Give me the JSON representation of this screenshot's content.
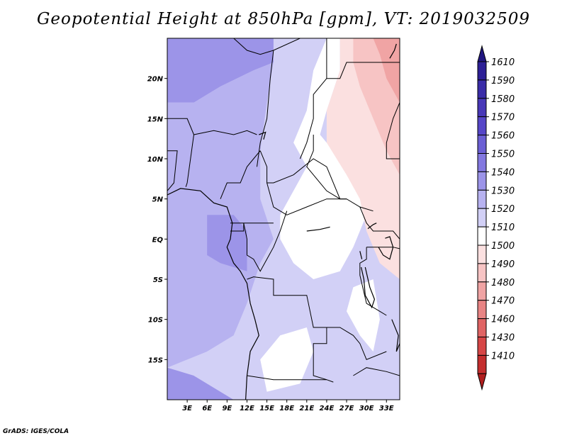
{
  "title": "Geopotential Height at 850hPa [gpm], VT: 2019032509",
  "credit": "GrADS: IGES/COLA",
  "map": {
    "lon_range": [
      0,
      35
    ],
    "lat_range": [
      -20,
      25
    ],
    "x_ticks": [
      {
        "lon": 3,
        "label": "3E"
      },
      {
        "lon": 6,
        "label": "6E"
      },
      {
        "lon": 9,
        "label": "9E"
      },
      {
        "lon": 12,
        "label": "12E"
      },
      {
        "lon": 15,
        "label": "15E"
      },
      {
        "lon": 18,
        "label": "18E"
      },
      {
        "lon": 21,
        "label": "21E"
      },
      {
        "lon": 24,
        "label": "24E"
      },
      {
        "lon": 27,
        "label": "27E"
      },
      {
        "lon": 30,
        "label": "30E"
      },
      {
        "lon": 33,
        "label": "33E"
      }
    ],
    "y_ticks": [
      {
        "lat": 20,
        "label": "20N"
      },
      {
        "lat": 15,
        "label": "15N"
      },
      {
        "lat": 10,
        "label": "10N"
      },
      {
        "lat": 5,
        "label": "5N"
      },
      {
        "lat": 0,
        "label": "EQ"
      },
      {
        "lat": -5,
        "label": "5S"
      },
      {
        "lat": -10,
        "label": "10S"
      },
      {
        "lat": -15,
        "label": "15S"
      }
    ]
  },
  "legend": {
    "levels": [
      {
        "label": "1610",
        "color": "#2d1f96"
      },
      {
        "label": "1590",
        "color": "#3a2ca8"
      },
      {
        "label": "1580",
        "color": "#4838b8"
      },
      {
        "label": "1570",
        "color": "#5646c8"
      },
      {
        "label": "1560",
        "color": "#6b5fd4"
      },
      {
        "label": "1550",
        "color": "#8378e0"
      },
      {
        "label": "1540",
        "color": "#9c94e8"
      },
      {
        "label": "1530",
        "color": "#b7b2f0"
      },
      {
        "label": "1520",
        "color": "#d2d0f6"
      },
      {
        "label": "1510",
        "color": "#ffffff"
      },
      {
        "label": "1500",
        "color": "#fbe0e0"
      },
      {
        "label": "1490",
        "color": "#f7c4c4"
      },
      {
        "label": "1480",
        "color": "#f0a4a4"
      },
      {
        "label": "1470",
        "color": "#e88484"
      },
      {
        "label": "1460",
        "color": "#e06464"
      },
      {
        "label": "1430",
        "color": "#d64646"
      },
      {
        "label": "1410",
        "color": "#c42e2e"
      }
    ],
    "top_arrow_color": "#211680",
    "bottom_arrow_color": "#b01e1e"
  },
  "fill_regions": [
    {
      "color": "#9c94e8",
      "points": [
        [
          0,
          25
        ],
        [
          18,
          25
        ],
        [
          16,
          22
        ],
        [
          13,
          21
        ],
        [
          8,
          19
        ],
        [
          4,
          17
        ],
        [
          0,
          17
        ]
      ]
    },
    {
      "color": "#b7b2f0",
      "points": [
        [
          0,
          17
        ],
        [
          4,
          17
        ],
        [
          8,
          19
        ],
        [
          13,
          21
        ],
        [
          16,
          22
        ],
        [
          15,
          17
        ],
        [
          14,
          11
        ],
        [
          14,
          5
        ],
        [
          16,
          0
        ],
        [
          14,
          -3
        ],
        [
          12,
          -8
        ],
        [
          10,
          -12
        ],
        [
          6,
          -14
        ],
        [
          0,
          -16
        ]
      ]
    },
    {
      "color": "#9c94e8",
      "points": [
        [
          6,
          3
        ],
        [
          10,
          3
        ],
        [
          12,
          1
        ],
        [
          12,
          -4
        ],
        [
          8,
          -3
        ],
        [
          6,
          -2
        ]
      ]
    },
    {
      "color": "#9c94e8",
      "points": [
        [
          0,
          -16
        ],
        [
          4,
          -17
        ],
        [
          10,
          -20
        ],
        [
          0,
          -20
        ]
      ]
    },
    {
      "color": "#d2d0f6",
      "points": [
        [
          16,
          25
        ],
        [
          24,
          25
        ],
        [
          22,
          21
        ],
        [
          22,
          16
        ],
        [
          21,
          12
        ],
        [
          17,
          8
        ],
        [
          15,
          4
        ],
        [
          16,
          0
        ],
        [
          14,
          -3
        ],
        [
          12,
          -8
        ],
        [
          10,
          -12
        ],
        [
          6,
          -14
        ],
        [
          4,
          -17
        ],
        [
          10,
          -20
        ],
        [
          35,
          -20
        ],
        [
          35,
          -8
        ],
        [
          29,
          -3
        ],
        [
          27,
          1
        ],
        [
          26,
          4
        ],
        [
          24,
          6
        ],
        [
          19,
          10
        ],
        [
          16,
          14
        ],
        [
          15,
          17
        ],
        [
          16,
          22
        ]
      ]
    },
    {
      "color": "#ffffff",
      "points": [
        [
          24,
          25
        ],
        [
          26,
          25
        ],
        [
          26,
          21
        ],
        [
          24,
          16
        ],
        [
          23,
          13
        ],
        [
          26,
          10
        ],
        [
          29,
          7
        ],
        [
          30,
          3
        ],
        [
          28,
          -1
        ],
        [
          26,
          -4
        ],
        [
          22,
          -5
        ],
        [
          19,
          -3
        ],
        [
          17,
          0
        ],
        [
          17,
          3
        ],
        [
          19,
          6
        ],
        [
          21,
          9
        ],
        [
          19,
          12
        ],
        [
          21,
          16
        ],
        [
          22,
          21
        ]
      ]
    },
    {
      "color": "#ffffff",
      "points": [
        [
          17,
          -12
        ],
        [
          21,
          -11
        ],
        [
          22,
          -14
        ],
        [
          20,
          -18
        ],
        [
          15,
          -19
        ],
        [
          14,
          -15
        ]
      ]
    },
    {
      "color": "#ffffff",
      "points": [
        [
          28,
          -6
        ],
        [
          31,
          -5
        ],
        [
          32,
          -10
        ],
        [
          31,
          -14
        ],
        [
          29,
          -12
        ],
        [
          27,
          -9
        ]
      ]
    },
    {
      "color": "#fbe0e0",
      "points": [
        [
          26,
          25
        ],
        [
          35,
          25
        ],
        [
          35,
          -5
        ],
        [
          32,
          -3
        ],
        [
          30,
          1
        ],
        [
          29,
          5
        ],
        [
          27,
          8
        ],
        [
          24,
          12
        ],
        [
          24,
          16
        ],
        [
          26,
          21
        ]
      ]
    },
    {
      "color": "#f7c4c4",
      "points": [
        [
          28,
          25
        ],
        [
          35,
          25
        ],
        [
          35,
          8
        ],
        [
          33,
          11
        ],
        [
          31,
          15
        ],
        [
          29,
          19
        ],
        [
          28,
          22
        ]
      ]
    },
    {
      "color": "#f0a4a4",
      "points": [
        [
          31,
          25
        ],
        [
          35,
          25
        ],
        [
          35,
          17
        ],
        [
          33,
          20
        ],
        [
          32,
          23
        ]
      ]
    }
  ],
  "country_borders": [
    [
      [
        10,
        25
      ],
      [
        12,
        23.5
      ],
      [
        14,
        23
      ],
      [
        16,
        23.5
      ],
      [
        20,
        25
      ]
    ],
    [
      [
        24,
        25
      ],
      [
        24,
        20
      ],
      [
        26,
        20
      ],
      [
        27,
        22
      ],
      [
        35,
        22
      ]
    ],
    [
      [
        24,
        20
      ],
      [
        22,
        18
      ],
      [
        22,
        15
      ],
      [
        21,
        12
      ],
      [
        20,
        10
      ]
    ],
    [
      [
        16,
        23.5
      ],
      [
        15.5,
        20
      ],
      [
        15,
        15
      ],
      [
        14,
        12
      ],
      [
        13.5,
        9
      ]
    ],
    [
      [
        0,
        15
      ],
      [
        3,
        15
      ],
      [
        4,
        13
      ],
      [
        7,
        13.5
      ],
      [
        10,
        13
      ],
      [
        12,
        13.5
      ],
      [
        13.5,
        13
      ]
    ],
    [
      [
        4,
        13
      ],
      [
        3.5,
        10
      ],
      [
        3,
        7
      ],
      [
        2.8,
        6.5
      ]
    ],
    [
      [
        8,
        5
      ],
      [
        9,
        7
      ],
      [
        11,
        7
      ],
      [
        12,
        9
      ],
      [
        13,
        10
      ],
      [
        14,
        11
      ]
    ],
    [
      [
        14,
        11
      ],
      [
        15,
        9
      ],
      [
        15,
        7
      ],
      [
        16,
        7
      ],
      [
        19,
        8
      ],
      [
        22,
        10
      ],
      [
        24,
        9
      ],
      [
        26,
        5
      ],
      [
        27,
        5
      ],
      [
        29,
        4
      ],
      [
        31,
        3.5
      ]
    ],
    [
      [
        26,
        5
      ],
      [
        24,
        6
      ],
      [
        21,
        9
      ],
      [
        22,
        11
      ],
      [
        22,
        13
      ]
    ],
    [
      [
        15,
        7
      ],
      [
        16,
        4
      ],
      [
        18,
        3
      ],
      [
        21,
        4
      ],
      [
        24,
        5
      ],
      [
        27,
        5
      ]
    ],
    [
      [
        9.5,
        2
      ],
      [
        11.5,
        2
      ],
      [
        14,
        2
      ],
      [
        16,
        2
      ]
    ],
    [
      [
        11.5,
        2
      ],
      [
        11.5,
        1
      ],
      [
        9.5,
        1
      ]
    ],
    [
      [
        11.5,
        2
      ],
      [
        12,
        0
      ],
      [
        12,
        -2
      ],
      [
        13,
        -2.5
      ],
      [
        14,
        -4
      ],
      [
        16,
        -1
      ],
      [
        17,
        1
      ],
      [
        18,
        3.5
      ]
    ],
    [
      [
        12,
        -5
      ],
      [
        13,
        -4.7
      ],
      [
        16,
        -5
      ],
      [
        16,
        -7
      ],
      [
        19,
        -7
      ],
      [
        21,
        -7
      ],
      [
        22,
        -11
      ],
      [
        24,
        -11
      ],
      [
        24,
        -13
      ],
      [
        22,
        -13
      ],
      [
        22,
        -17
      ],
      [
        24,
        -17.5
      ],
      [
        25,
        -17.8
      ]
    ],
    [
      [
        12,
        -17
      ],
      [
        16,
        -17.5
      ],
      [
        20,
        -17.5
      ],
      [
        24,
        -17.5
      ]
    ],
    [
      [
        30,
        -1
      ],
      [
        30,
        -2.5
      ],
      [
        29,
        -3
      ],
      [
        29,
        -4.5
      ],
      [
        30,
        -8
      ],
      [
        32,
        -9
      ],
      [
        33,
        -9.5
      ]
    ],
    [
      [
        29,
        4
      ],
      [
        30,
        2
      ],
      [
        31,
        1
      ],
      [
        34,
        1
      ],
      [
        35,
        0
      ]
    ],
    [
      [
        30,
        -1
      ],
      [
        34,
        -1
      ],
      [
        35,
        -1.2
      ]
    ],
    [
      [
        24,
        -11
      ],
      [
        26,
        -11
      ],
      [
        28,
        -12
      ],
      [
        29,
        -13
      ],
      [
        30,
        -15
      ],
      [
        33,
        -14
      ]
    ],
    [
      [
        28,
        -17
      ],
      [
        30,
        -16
      ],
      [
        33,
        -16.5
      ],
      [
        35,
        -17
      ]
    ],
    [
      [
        35,
        10
      ],
      [
        33,
        10
      ],
      [
        33,
        12
      ],
      [
        34,
        15
      ],
      [
        35,
        17
      ]
    ],
    [
      [
        0,
        6
      ],
      [
        1,
        7
      ],
      [
        1.5,
        11
      ],
      [
        0,
        11
      ]
    ]
  ],
  "coastlines": [
    [
      [
        0,
        5.5
      ],
      [
        2,
        6.3
      ],
      [
        5,
        6
      ],
      [
        7,
        4.5
      ],
      [
        9,
        4
      ],
      [
        9.8,
        2
      ],
      [
        9.5,
        0
      ],
      [
        9,
        -1
      ],
      [
        10,
        -3
      ],
      [
        11,
        -4
      ],
      [
        12,
        -5.5
      ],
      [
        12.5,
        -8
      ],
      [
        13.2,
        -10
      ],
      [
        13.8,
        -12
      ],
      [
        12.5,
        -14
      ],
      [
        12,
        -17
      ],
      [
        11.8,
        -20
      ]
    ],
    [
      [
        31.8,
        -1
      ],
      [
        32.5,
        -2
      ],
      [
        33.5,
        -2.5
      ],
      [
        34,
        -1
      ],
      [
        33.5,
        0.3
      ],
      [
        32.8,
        0.1
      ]
    ],
    [
      [
        29.2,
        -3.5
      ],
      [
        29.6,
        -5
      ],
      [
        29.8,
        -7
      ],
      [
        30.8,
        -8.5
      ],
      [
        31.2,
        -7.5
      ],
      [
        30.5,
        -6
      ],
      [
        29.8,
        -3.5
      ]
    ],
    [
      [
        33.8,
        -10
      ],
      [
        34.8,
        -12
      ],
      [
        34.5,
        -14
      ],
      [
        35,
        -13
      ]
    ],
    [
      [
        29,
        -1.5
      ],
      [
        29.3,
        -2.5
      ]
    ],
    [
      [
        30.2,
        1.3
      ],
      [
        31,
        1.8
      ],
      [
        31.5,
        2
      ]
    ],
    [
      [
        33.5,
        22.5
      ],
      [
        34.2,
        23.5
      ],
      [
        34.5,
        24.3
      ]
    ],
    [
      [
        13.8,
        13
      ],
      [
        14.8,
        13.3
      ],
      [
        14.5,
        12.4
      ]
    ],
    [
      [
        21,
        1
      ],
      [
        23,
        1.2
      ],
      [
        24.5,
        1.5
      ]
    ]
  ]
}
